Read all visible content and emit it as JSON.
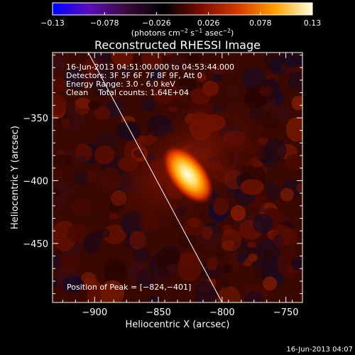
{
  "colorbar": {
    "ticks": [
      "−0.13",
      "−0.078",
      "−0.026",
      "0.026",
      "0.078",
      "0.13"
    ],
    "tick_values": [
      -0.13,
      -0.078,
      -0.026,
      0.026,
      0.078,
      0.13
    ],
    "range": [
      -0.13,
      0.13
    ],
    "units_main": "(photons cm",
    "units_sup1": "−2",
    "units_mid1": " s",
    "units_sup2": "−1",
    "units_mid2": " asec",
    "units_sup3": "−2",
    "units_end": ")",
    "stops": [
      "#0000ff",
      "#5a0fb5",
      "#3a0a3a",
      "#000000",
      "#7a0d00",
      "#d43a00",
      "#ffa000",
      "#ffffe0"
    ]
  },
  "chart_data": {
    "type": "heatmap",
    "title": "Reconstructed RHESSI Image",
    "xlabel": "Heliocentric X (arcsec)",
    "ylabel": "Heliocentric Y (arcsec)",
    "xlim": [
      -933,
      -737
    ],
    "ylim": [
      -497,
      -298
    ],
    "x_ticks": [
      -900,
      -850,
      -800,
      -750
    ],
    "x_tick_labels": [
      "−900",
      "−850",
      "−800",
      "−750"
    ],
    "y_ticks": [
      -350,
      -400,
      -450
    ],
    "y_tick_labels": [
      "−350",
      "−400",
      "−450"
    ],
    "peak": {
      "x": -824,
      "y": -401
    },
    "source_core_value": 0.13,
    "limb_line": [
      [
        -905,
        -298
      ],
      [
        -800,
        -497
      ]
    ],
    "annotations": {
      "time": "16-Jun-2013 04:51:00.000 to 04:53:44.000",
      "detectors": "Detectors: 3F 5F 6F 7F 8F 9F, Att 0",
      "energy": "Energy Range: 3.0 - 6.0 keV",
      "clean": "Clean    Total counts: 1.64E+04",
      "peak_label": "Position of Peak = [−824,−401]"
    }
  },
  "timestamp": "16-Jun-2013 04:07"
}
